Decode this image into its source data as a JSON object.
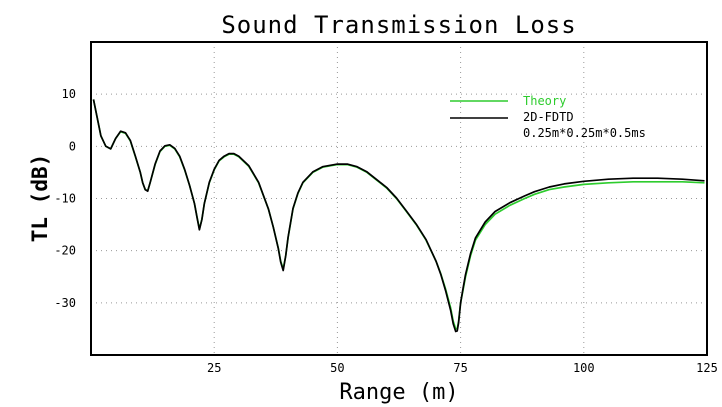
{
  "chart_data": {
    "type": "line",
    "title": "Sound Transmission Loss",
    "xlabel": "Range (m)",
    "ylabel": "TL (dB)",
    "xlim": [
      0,
      125
    ],
    "ylim": [
      -40,
      20
    ],
    "xticks": [
      25,
      50,
      75,
      100,
      125
    ],
    "yticks": [
      10,
      0,
      -10,
      -20,
      -30
    ],
    "grid": true,
    "legend_position": "top-right",
    "series": [
      {
        "name": "Theory",
        "color": "#2ecc2e",
        "x": [
          0.5,
          2,
          3,
          4,
          5,
          6,
          7,
          8,
          9,
          10,
          10.5,
          11,
          11.5,
          12,
          13,
          14,
          15,
          16,
          17,
          18,
          19,
          20,
          21,
          21.5,
          22,
          22.5,
          23,
          24,
          25,
          26,
          27,
          28,
          29,
          30,
          32,
          34,
          36,
          37,
          38,
          38.5,
          39,
          39.5,
          40,
          41,
          42,
          43,
          45,
          47,
          50,
          52,
          54,
          56,
          58,
          60,
          62,
          64,
          66,
          68,
          70,
          71,
          72,
          73,
          73.5,
          74,
          74.3,
          74.6,
          75,
          75.5,
          76,
          77,
          78,
          80,
          82,
          85,
          88,
          90,
          93,
          96,
          100,
          105,
          110,
          115,
          120,
          124.5
        ],
        "y": [
          9,
          2,
          0,
          -0.5,
          1.5,
          2.8,
          2.5,
          1,
          -2,
          -5,
          -7,
          -8.3,
          -8.5,
          -7,
          -3.5,
          -1,
          0,
          0.2,
          -0.5,
          -2,
          -4.5,
          -7.5,
          -11,
          -13.5,
          -15.8,
          -14,
          -11,
          -7,
          -4.5,
          -2.8,
          -2,
          -1.5,
          -1.5,
          -2,
          -3.8,
          -7,
          -12,
          -15.5,
          -19.5,
          -22,
          -23.5,
          -21,
          -17.5,
          -12,
          -9,
          -7,
          -5,
          -4,
          -3.5,
          -3.5,
          -4,
          -5,
          -6.5,
          -8,
          -10,
          -12.5,
          -15,
          -18,
          -22,
          -24.5,
          -27.5,
          -31,
          -33.5,
          -35,
          -35,
          -33.5,
          -30,
          -27.5,
          -25,
          -21,
          -18,
          -15,
          -13,
          -11.3,
          -10,
          -9.2,
          -8.3,
          -7.8,
          -7.3,
          -7,
          -6.8,
          -6.8,
          -6.8,
          -7
        ]
      },
      {
        "name": "2D-FDTD",
        "color": "#000000",
        "x": [
          0.5,
          2,
          3,
          4,
          5,
          6,
          7,
          8,
          9,
          10,
          10.5,
          11,
          11.5,
          12,
          13,
          14,
          15,
          16,
          17,
          18,
          19,
          20,
          21,
          21.5,
          22,
          22.5,
          23,
          24,
          25,
          26,
          27,
          28,
          29,
          30,
          32,
          34,
          36,
          37,
          38,
          38.5,
          39,
          39.5,
          40,
          41,
          42,
          43,
          45,
          47,
          50,
          52,
          54,
          56,
          58,
          60,
          62,
          64,
          66,
          68,
          70,
          71,
          72,
          73,
          73.5,
          74,
          74.3,
          74.6,
          75,
          75.5,
          76,
          77,
          78,
          80,
          82,
          85,
          88,
          90,
          93,
          96,
          100,
          105,
          110,
          115,
          120,
          124.5
        ],
        "y": [
          9,
          2,
          0,
          -0.5,
          1.5,
          2.9,
          2.6,
          1.1,
          -1.9,
          -5,
          -7,
          -8.3,
          -8.6,
          -7,
          -3.4,
          -0.9,
          0.1,
          0.3,
          -0.4,
          -1.9,
          -4.4,
          -7.5,
          -11,
          -13.6,
          -16,
          -14,
          -11,
          -6.9,
          -4.4,
          -2.7,
          -1.9,
          -1.4,
          -1.4,
          -1.9,
          -3.7,
          -6.9,
          -12,
          -15.5,
          -19.6,
          -22.2,
          -23.8,
          -21,
          -17.4,
          -11.9,
          -8.9,
          -6.9,
          -4.9,
          -3.9,
          -3.4,
          -3.4,
          -3.9,
          -4.9,
          -6.4,
          -7.9,
          -9.9,
          -12.4,
          -14.9,
          -17.9,
          -22,
          -24.6,
          -27.8,
          -31.5,
          -34,
          -35.5,
          -35.4,
          -33.8,
          -30,
          -27.2,
          -24.6,
          -20.6,
          -17.6,
          -14.5,
          -12.5,
          -10.8,
          -9.5,
          -8.7,
          -7.8,
          -7.2,
          -6.7,
          -6.3,
          -6.1,
          -6.1,
          -6.3,
          -6.6
        ]
      }
    ],
    "annotations": [
      {
        "text": "0.25m*0.25m*0.5ms"
      }
    ]
  }
}
